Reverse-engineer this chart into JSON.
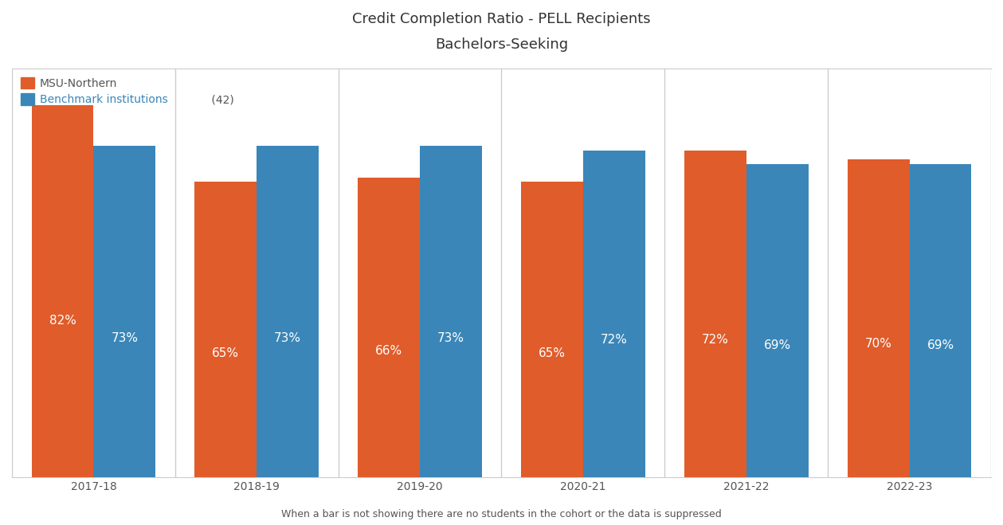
{
  "title_line1": "Credit Completion Ratio - PELL Recipients",
  "title_line2": "Bachelors-Seeking",
  "categories": [
    "2017-18",
    "2018-19",
    "2019-20",
    "2020-21",
    "2021-22",
    "2022-23"
  ],
  "msu_values": [
    82,
    65,
    66,
    65,
    72,
    70
  ],
  "bench_values": [
    73,
    73,
    73,
    72,
    69,
    69
  ],
  "msu_color": "#E05C2A",
  "bench_color": "#3A86B8",
  "label_msu": "MSU-Northern",
  "label_bench": "Benchmark institutions",
  "bench_n": " (42)",
  "footnote": "When a bar is not showing there are no students in the cohort or the data is suppressed",
  "bar_width": 0.38,
  "ylim": [
    0,
    90
  ],
  "text_color_msu": "#E05C2A",
  "text_color_bench": "#3A86B8",
  "legend_text_color": "#555555",
  "title_fontsize": 13,
  "label_fontsize": 10,
  "tick_fontsize": 10,
  "footnote_fontsize": 9,
  "bar_label_fontsize": 11
}
